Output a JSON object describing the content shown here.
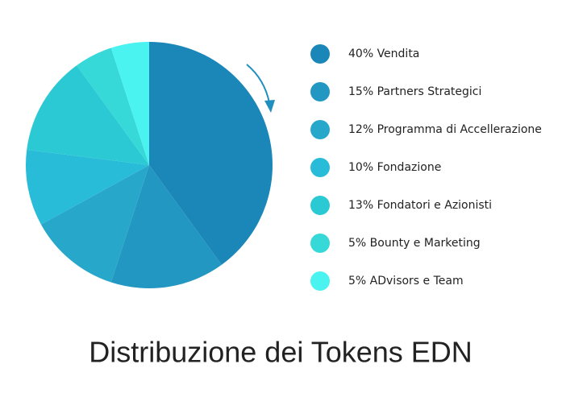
{
  "chart_data": {
    "type": "pie",
    "title": "Distribuzione dei Tokens EDN",
    "categories": [
      "40% Vendita",
      "15% Partners Strategici",
      "12% Programma di Accellerazione",
      "10% Fondazione",
      "13% Fondatori e Azionisti",
      "5% Bounty e Marketing",
      "5% ADvisors e Team"
    ],
    "values": [
      40,
      15,
      12,
      10,
      13,
      5,
      5
    ],
    "colors": [
      "#1b87b9",
      "#2197c2",
      "#27a8cb",
      "#29bcd9",
      "#2bc9d3",
      "#36d8d8",
      "#4af2f0"
    ]
  }
}
